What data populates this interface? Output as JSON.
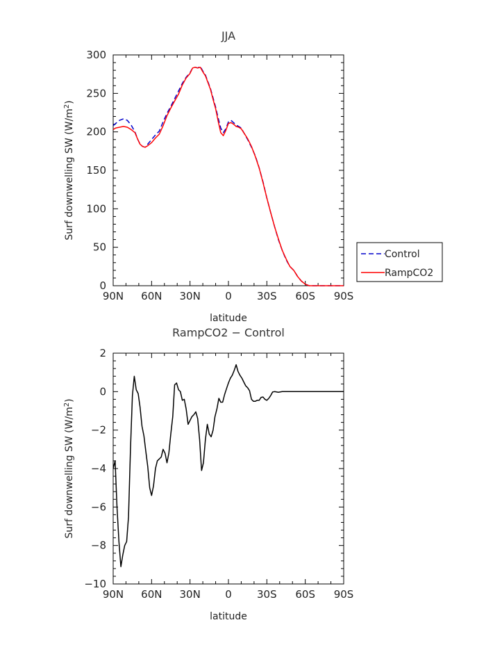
{
  "chart_data": [
    {
      "type": "line",
      "title": "JJA",
      "xlabel": "latitude",
      "ylabel": "Surf downwelling SW (W/m²)",
      "ylabel_base": "Surf downwelling SW (W/m",
      "ylabel_sup": "2",
      "ylabel_close": ")",
      "xlim": [
        90,
        -90
      ],
      "ylim": [
        0,
        300
      ],
      "xticks": [
        90,
        60,
        30,
        0,
        -30,
        -60,
        -90
      ],
      "xtick_labels": [
        "90N",
        "60N",
        "30N",
        "0",
        "30S",
        "60S",
        "90S"
      ],
      "yticks": [
        0,
        50,
        100,
        150,
        200,
        250,
        300
      ],
      "ytick_labels": [
        "0",
        "50",
        "100",
        "150",
        "200",
        "250",
        "300"
      ],
      "grid": false,
      "legend_position": "right",
      "series": [
        {
          "name": "Control",
          "color": "#0000cc",
          "dash": "dashed",
          "points": [
            [
              90,
              208
            ],
            [
              88,
              211
            ],
            [
              85,
              215
            ],
            [
              82,
              217
            ],
            [
              79,
              215
            ],
            [
              76,
              209
            ],
            [
              73,
              200
            ],
            [
              71,
              191
            ],
            [
              69,
              184
            ],
            [
              67,
              181
            ],
            [
              65,
              180
            ],
            [
              63,
              184
            ],
            [
              60,
              190
            ],
            [
              57,
              196
            ],
            [
              54,
              201
            ],
            [
              51,
              213
            ],
            [
              48,
              224
            ],
            [
              45,
              233
            ],
            [
              42,
              243
            ],
            [
              39,
              253
            ],
            [
              36,
              263
            ],
            [
              33,
              271
            ],
            [
              30,
              277
            ],
            [
              28,
              283
            ],
            [
              26,
              284
            ],
            [
              24,
              283
            ],
            [
              22,
              285
            ],
            [
              20,
              279
            ],
            [
              18,
              274
            ],
            [
              16,
              265
            ],
            [
              14,
              256
            ],
            [
              12,
              244
            ],
            [
              10,
              232
            ],
            [
              8,
              218
            ],
            [
              6,
              205
            ],
            [
              4,
              199
            ],
            [
              2,
              204
            ],
            [
              0,
              213
            ],
            [
              -2,
              215
            ],
            [
              -4,
              212
            ],
            [
              -6,
              209
            ],
            [
              -8,
              207
            ],
            [
              -10,
              205
            ],
            [
              -12,
              199
            ],
            [
              -15,
              190
            ],
            [
              -18,
              180
            ],
            [
              -21,
              169
            ],
            [
              -24,
              153
            ],
            [
              -27,
              135
            ],
            [
              -30,
              114
            ],
            [
              -33,
              95
            ],
            [
              -36,
              77
            ],
            [
              -39,
              60
            ],
            [
              -42,
              46
            ],
            [
              -45,
              34
            ],
            [
              -48,
              25
            ],
            [
              -51,
              20
            ],
            [
              -54,
              12
            ],
            [
              -57,
              6
            ],
            [
              -60,
              2
            ],
            [
              -63,
              0
            ],
            [
              -66,
              0
            ],
            [
              -69,
              0
            ],
            [
              -72,
              0
            ],
            [
              -75,
              0
            ],
            [
              -78,
              0
            ],
            [
              -81,
              0
            ],
            [
              -84,
              0
            ],
            [
              -87,
              0
            ],
            [
              -90,
              0
            ]
          ]
        },
        {
          "name": "RampCO2",
          "color": "#ff0000",
          "dash": "solid",
          "points": [
            [
              90,
              203
            ],
            [
              88,
              205
            ],
            [
              85,
              206
            ],
            [
              82,
              207
            ],
            [
              79,
              206
            ],
            [
              76,
              203
            ],
            [
              73,
              199
            ],
            [
              71,
              191
            ],
            [
              69,
              184
            ],
            [
              67,
              181
            ],
            [
              65,
              180
            ],
            [
              63,
              182
            ],
            [
              60,
              186
            ],
            [
              57,
              192
            ],
            [
              54,
              197
            ],
            [
              51,
              208
            ],
            [
              48,
              221
            ],
            [
              45,
              231
            ],
            [
              42,
              240
            ],
            [
              39,
              249
            ],
            [
              36,
              261
            ],
            [
              33,
              270
            ],
            [
              30,
              276
            ],
            [
              28,
              283
            ],
            [
              26,
              284
            ],
            [
              24,
              283
            ],
            [
              22,
              284
            ],
            [
              20,
              278
            ],
            [
              18,
              273
            ],
            [
              16,
              264
            ],
            [
              14,
              255
            ],
            [
              12,
              242
            ],
            [
              10,
              230
            ],
            [
              8,
              214
            ],
            [
              6,
              199
            ],
            [
              4,
              195
            ],
            [
              2,
              202
            ],
            [
              0,
              211
            ],
            [
              -2,
              212
            ],
            [
              -4,
              210
            ],
            [
              -6,
              207
            ],
            [
              -8,
              206
            ],
            [
              -10,
              204
            ],
            [
              -12,
              199
            ],
            [
              -15,
              191
            ],
            [
              -18,
              181
            ],
            [
              -21,
              168
            ],
            [
              -24,
              153
            ],
            [
              -27,
              134
            ],
            [
              -30,
              114
            ],
            [
              -33,
              95
            ],
            [
              -36,
              77
            ],
            [
              -39,
              61
            ],
            [
              -42,
              46
            ],
            [
              -45,
              35
            ],
            [
              -48,
              25
            ],
            [
              -51,
              20
            ],
            [
              -54,
              12
            ],
            [
              -57,
              6
            ],
            [
              -60,
              2
            ],
            [
              -63,
              0
            ],
            [
              -66,
              0
            ],
            [
              -69,
              0
            ],
            [
              -72,
              0
            ],
            [
              -75,
              0
            ],
            [
              -78,
              0
            ],
            [
              -81,
              0
            ],
            [
              -84,
              0
            ],
            [
              -87,
              0
            ],
            [
              -90,
              0
            ]
          ]
        }
      ]
    },
    {
      "type": "line",
      "title": "RampCO2 − Control",
      "xlabel": "latitude",
      "ylabel": "Surf downwelling SW (W/m²)",
      "ylabel_base": "Surf downwelling SW (W/m",
      "ylabel_sup": "2",
      "ylabel_close": ")",
      "xlim": [
        90,
        -90
      ],
      "ylim": [
        -10,
        2
      ],
      "xticks": [
        90,
        60,
        30,
        0,
        -30,
        -60,
        -90
      ],
      "xtick_labels": [
        "90N",
        "60N",
        "30N",
        "0",
        "30S",
        "60S",
        "90S"
      ],
      "yticks": [
        -10,
        -8,
        -6,
        -4,
        -2,
        0,
        2
      ],
      "ytick_labels": [
        "−10",
        "−8",
        "−6",
        "−4",
        "−2",
        "0",
        "2"
      ],
      "grid": false,
      "series": [
        {
          "name": "",
          "color": "#000000",
          "dash": "solid",
          "points": [
            [
              90,
              -4.0
            ],
            [
              88.5,
              -3.6
            ],
            [
              87,
              -6.0
            ],
            [
              85.5,
              -7.8
            ],
            [
              84,
              -9.1
            ],
            [
              82.5,
              -8.5
            ],
            [
              81,
              -8.0
            ],
            [
              79.5,
              -7.8
            ],
            [
              78,
              -6.5
            ],
            [
              76.5,
              -3.0
            ],
            [
              75,
              -0.2
            ],
            [
              73.5,
              0.8
            ],
            [
              72,
              0.1
            ],
            [
              70.5,
              -0.1
            ],
            [
              69,
              -0.8
            ],
            [
              67.5,
              -1.8
            ],
            [
              66,
              -2.3
            ],
            [
              64.5,
              -3.1
            ],
            [
              63,
              -3.9
            ],
            [
              61.5,
              -5.0
            ],
            [
              60,
              -5.4
            ],
            [
              58.5,
              -4.9
            ],
            [
              57,
              -4.0
            ],
            [
              55.5,
              -3.6
            ],
            [
              54,
              -3.5
            ],
            [
              52.5,
              -3.4
            ],
            [
              51,
              -3.0
            ],
            [
              49.5,
              -3.2
            ],
            [
              48,
              -3.7
            ],
            [
              46.5,
              -3.2
            ],
            [
              45,
              -2.2
            ],
            [
              43.5,
              -1.3
            ],
            [
              42,
              0.35
            ],
            [
              40.5,
              0.45
            ],
            [
              39,
              0.1
            ],
            [
              37.5,
              0.0
            ],
            [
              36,
              -0.45
            ],
            [
              34.5,
              -0.4
            ],
            [
              33,
              -0.9
            ],
            [
              31.5,
              -1.7
            ],
            [
              30,
              -1.5
            ],
            [
              28.5,
              -1.3
            ],
            [
              27,
              -1.2
            ],
            [
              25.5,
              -1.05
            ],
            [
              24,
              -1.4
            ],
            [
              22.5,
              -2.5
            ],
            [
              21,
              -4.1
            ],
            [
              19.5,
              -3.7
            ],
            [
              18,
              -2.5
            ],
            [
              16.5,
              -1.7
            ],
            [
              15,
              -2.2
            ],
            [
              13.5,
              -2.35
            ],
            [
              12,
              -2.0
            ],
            [
              10.5,
              -1.3
            ],
            [
              9,
              -0.9
            ],
            [
              7.5,
              -0.35
            ],
            [
              6,
              -0.55
            ],
            [
              4.5,
              -0.55
            ],
            [
              3,
              -0.15
            ],
            [
              1.5,
              0.15
            ],
            [
              0,
              0.45
            ],
            [
              -1.5,
              0.7
            ],
            [
              -3,
              0.85
            ],
            [
              -4.5,
              1.1
            ],
            [
              -6,
              1.4
            ],
            [
              -7.5,
              1.05
            ],
            [
              -9,
              0.85
            ],
            [
              -10.5,
              0.7
            ],
            [
              -12,
              0.5
            ],
            [
              -13.5,
              0.3
            ],
            [
              -15,
              0.2
            ],
            [
              -16.5,
              0.05
            ],
            [
              -18,
              -0.4
            ],
            [
              -19.5,
              -0.5
            ],
            [
              -21,
              -0.5
            ],
            [
              -22.5,
              -0.45
            ],
            [
              -24,
              -0.45
            ],
            [
              -25.5,
              -0.3
            ],
            [
              -27,
              -0.28
            ],
            [
              -28.5,
              -0.4
            ],
            [
              -30,
              -0.45
            ],
            [
              -31.5,
              -0.35
            ],
            [
              -33,
              -0.2
            ],
            [
              -34.5,
              -0.02
            ],
            [
              -36,
              0.0
            ],
            [
              -39,
              -0.03
            ],
            [
              -42,
              0.0
            ],
            [
              -48,
              0.0
            ],
            [
              -54,
              0.0
            ],
            [
              -60,
              0.0
            ],
            [
              -66,
              0.0
            ],
            [
              -72,
              0.0
            ],
            [
              -78,
              0.0
            ],
            [
              -84,
              0.0
            ],
            [
              -90,
              0.0
            ]
          ]
        }
      ]
    }
  ]
}
